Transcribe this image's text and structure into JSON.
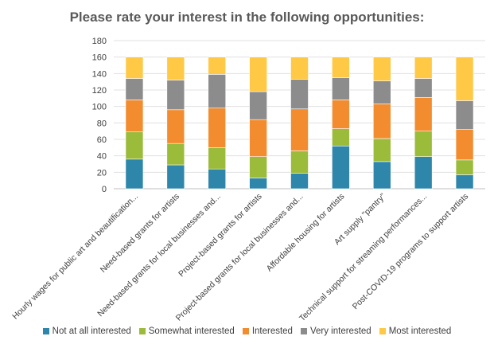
{
  "chart_data": {
    "type": "bar",
    "stacked": true,
    "title": "Please rate your interest in the following opportunities:",
    "xlabel": "",
    "ylabel": "",
    "ylim": [
      0,
      180
    ],
    "yticks": [
      0,
      20,
      40,
      60,
      80,
      100,
      120,
      140,
      160,
      180
    ],
    "grid": true,
    "legend_position": "bottom",
    "categories": [
      "Hourly wages for public art and beautification...",
      "Need-based grants for artists",
      "Need-based grants for local businesses and...",
      "Project-based grants for artists",
      "Project-based grants for local businesses and...",
      "Affordable housing for artists",
      "Art supply \"pantry\"",
      "Technical support for streaming performances...",
      "Post-COVID-19 programs to support artists"
    ],
    "series": [
      {
        "name": "Not at all interested",
        "color": "#2E86AB",
        "values": [
          36,
          29,
          24,
          13,
          19,
          52,
          33,
          39,
          17
        ]
      },
      {
        "name": "Somewhat interested",
        "color": "#9BBB3B",
        "values": [
          33,
          26,
          26,
          26,
          27,
          21,
          28,
          31,
          18
        ]
      },
      {
        "name": "Interested",
        "color": "#F28C2E",
        "values": [
          39,
          41,
          48,
          45,
          51,
          35,
          42,
          41,
          37
        ]
      },
      {
        "name": "Very interested",
        "color": "#8C8C8C",
        "values": [
          26,
          36,
          41,
          34,
          36,
          27,
          28,
          23,
          35
        ]
      },
      {
        "name": "Most interested",
        "color": "#FFC845",
        "values": [
          26,
          28,
          21,
          42,
          27,
          25,
          29,
          26,
          53
        ]
      }
    ]
  }
}
